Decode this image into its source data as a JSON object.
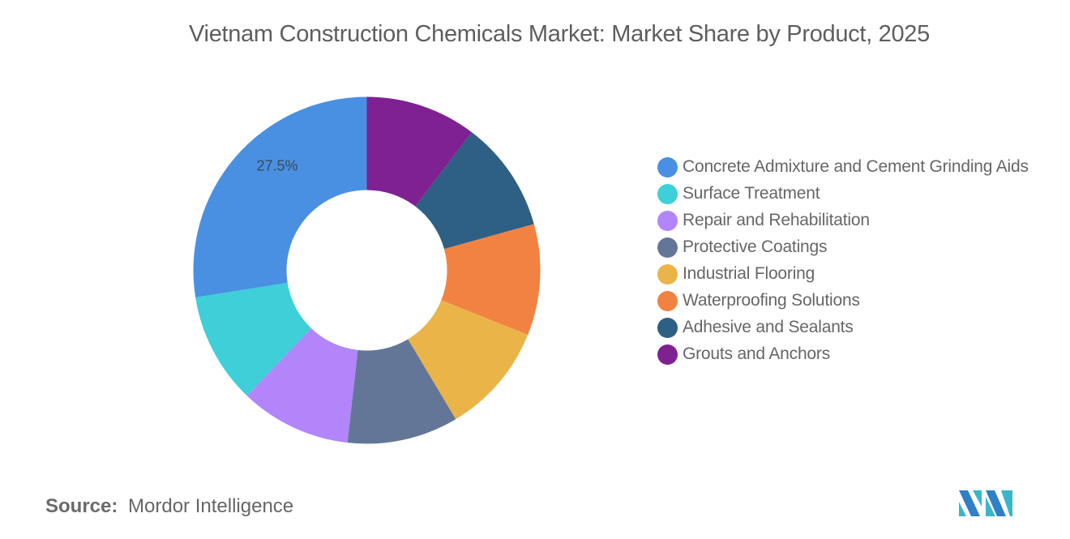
{
  "header": {
    "title": "Vietnam Construction Chemicals Market: Market Share by Product, 2025"
  },
  "footer": {
    "source_label": "Source:",
    "source_value": "Mordor Intelligence",
    "logo": "mordor-intelligence-logo"
  },
  "legend": {
    "items": [
      {
        "label": "Concrete Admixture and Cement Grinding Aids",
        "color": "#4a90e2"
      },
      {
        "label": "Surface Treatment",
        "color": "#3ecfd8"
      },
      {
        "label": "Repair and Rehabilitation",
        "color": "#b286fa"
      },
      {
        "label": "Protective Coatings",
        "color": "#647698"
      },
      {
        "label": "Industrial Flooring",
        "color": "#eab449"
      },
      {
        "label": "Waterproofing Solutions",
        "color": "#f28241"
      },
      {
        "label": "Adhesive and Sealants",
        "color": "#2e5f84"
      },
      {
        "label": "Grouts and Anchors",
        "color": "#7f2191"
      }
    ]
  },
  "chart_data": {
    "type": "pie",
    "subtype": "donut",
    "title": "Vietnam Construction Chemicals Market: Market Share by Product, 2025",
    "categories": [
      "Concrete Admixture and Cement Grinding Aids",
      "Surface Treatment",
      "Repair and Rehabilitation",
      "Protective Coatings",
      "Industrial Flooring",
      "Waterproofing Solutions",
      "Adhesive and Sealants",
      "Grouts and Anchors"
    ],
    "values": [
      27.5,
      10.36,
      10.36,
      10.36,
      10.36,
      10.36,
      10.36,
      10.34
    ],
    "colors": [
      "#4a90e2",
      "#3ecfd8",
      "#b286fa",
      "#647698",
      "#eab449",
      "#f28241",
      "#2e5f84",
      "#7f2191"
    ],
    "data_labels": [
      {
        "category": "Concrete Admixture and Cement Grinding Aids",
        "text": "27.5%"
      }
    ],
    "unit": "%",
    "start_angle": "12 o'clock",
    "direction": "counterclockwise",
    "legend_position": "right",
    "source": "Mordor Intelligence"
  }
}
